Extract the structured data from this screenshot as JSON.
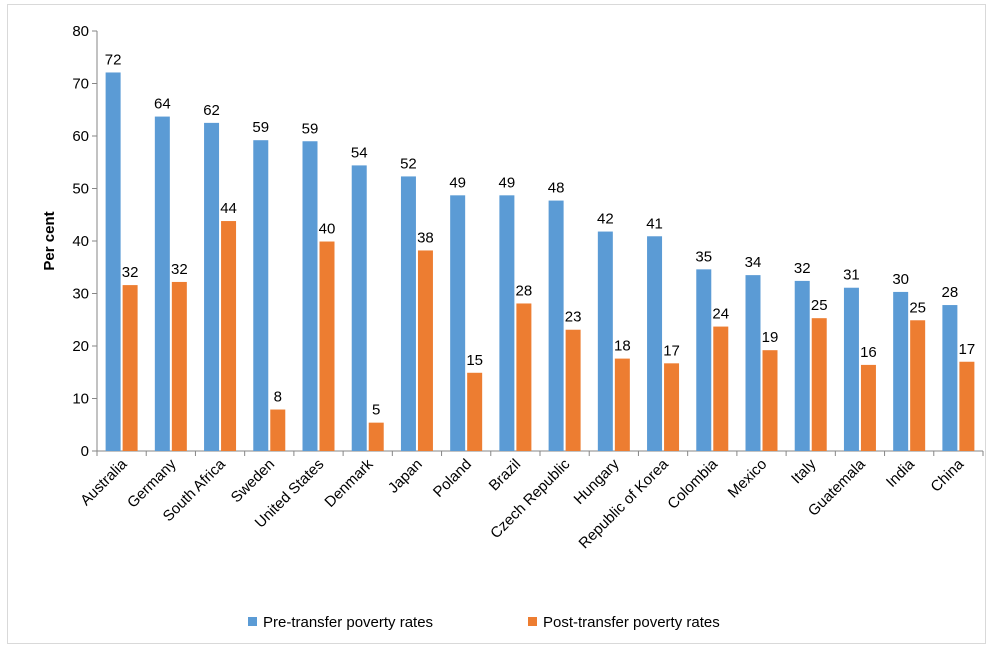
{
  "chart_data": {
    "type": "bar",
    "title": "",
    "xlabel": "",
    "ylabel": "Per cent",
    "ylim": [
      0,
      80
    ],
    "yticks": [
      0,
      10,
      20,
      30,
      40,
      50,
      60,
      70,
      80
    ],
    "grid": false,
    "legend_position": "bottom",
    "categories": [
      "Australia",
      "Germany",
      "South Africa",
      "Sweden",
      "United States",
      "Denmark",
      "Japan",
      "Poland",
      "Brazil",
      "Czech Republic",
      "Hungary",
      "Republic of Korea",
      "Colombia",
      "Mexico",
      "Italy",
      "Guatemala",
      "India",
      "China"
    ],
    "series": [
      {
        "name": "Pre-transfer poverty rates",
        "color": "#5b9bd5",
        "values": [
          72.1,
          63.7,
          62.5,
          59.2,
          59.0,
          54.4,
          52.3,
          48.7,
          48.7,
          47.7,
          41.8,
          40.9,
          34.6,
          33.5,
          32.4,
          31.1,
          30.3,
          27.8
        ],
        "labels": [
          "72",
          "64",
          "62",
          "59",
          "59",
          "54",
          "52",
          "49",
          "49",
          "48",
          "42",
          "41",
          "35",
          "34",
          "32",
          "31",
          "30",
          "28"
        ]
      },
      {
        "name": "Post-transfer poverty rates",
        "color": "#ed7d31",
        "values": [
          31.6,
          32.2,
          43.8,
          7.9,
          39.9,
          5.4,
          38.2,
          14.9,
          28.1,
          23.1,
          17.6,
          16.7,
          23.7,
          19.2,
          25.3,
          16.4,
          24.9,
          17.0
        ],
        "labels": [
          "32",
          "32",
          "44",
          "8",
          "40",
          "5",
          "38",
          "15",
          "28",
          "23",
          "18",
          "17",
          "24",
          "19",
          "25",
          "16",
          "25",
          "17"
        ]
      }
    ]
  }
}
